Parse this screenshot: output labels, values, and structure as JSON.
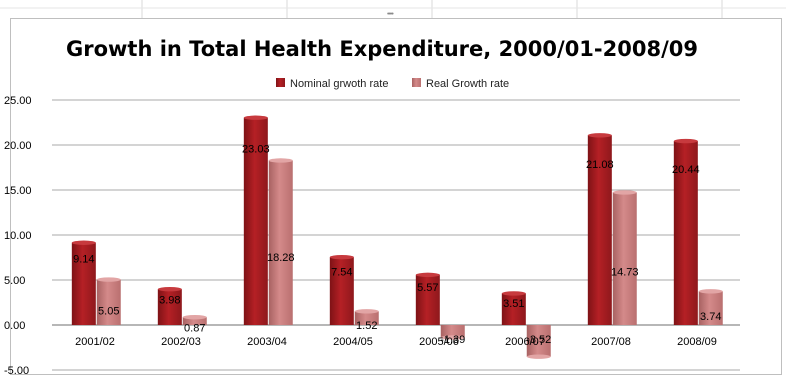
{
  "chart_data": {
    "type": "bar",
    "title": "Growth in Total Health Expenditure, 2000/01-2008/09",
    "xlabel": "",
    "ylabel": "",
    "categories": [
      "2001/02",
      "2002/03",
      "2003/04",
      "2004/05",
      "2005/06",
      "2006/07",
      "2007/08",
      "2008/09"
    ],
    "series": [
      {
        "name": "Nominal grwoth rate",
        "color": "#b52025",
        "values": [
          9.14,
          3.98,
          23.03,
          7.54,
          5.57,
          3.51,
          21.08,
          20.44
        ],
        "labels": [
          "9.14",
          "3.98",
          "23.03",
          "7.54",
          "5.57",
          "3.51",
          "21.08",
          "20.44"
        ]
      },
      {
        "name": "Real Growth rate",
        "color": "#d48a8a",
        "values": [
          5.05,
          0.87,
          18.28,
          1.52,
          -1.39,
          -3.52,
          14.73,
          3.74
        ],
        "labels": [
          "5.05",
          "0.87",
          "18.28",
          "1.52",
          "-1.39",
          "-3.52",
          "14.73",
          "3.74"
        ]
      }
    ],
    "ylim": [
      -5,
      25
    ],
    "yticks": [
      -5,
      0,
      5,
      10,
      15,
      20,
      25
    ],
    "ytick_labels": [
      "-5.00",
      "0.00",
      "5.00",
      "10.00",
      "15.00",
      "20.00",
      "25.00"
    ],
    "grid": true,
    "legend_position": "top"
  }
}
